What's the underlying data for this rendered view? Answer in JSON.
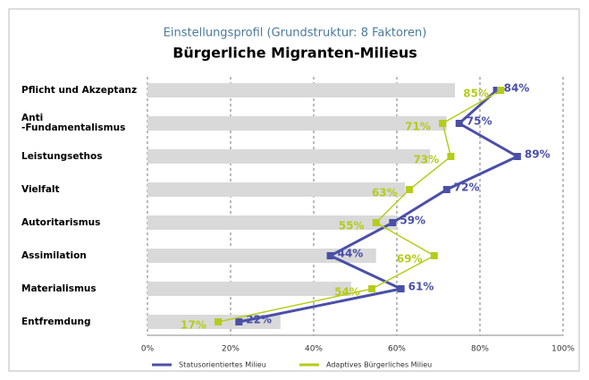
{
  "chart_data": {
    "type": "bar_line",
    "subtitle": "Einstellungsprofil (Grundstruktur: 8 Faktoren)",
    "title": "Bürgerliche Migranten-Milieus",
    "categories": [
      "Pflicht und Akzeptanz",
      "Anti\n-Fundamentalismus",
      "Leistungsethos",
      "Vielfalt",
      "Autoritarismus",
      "Assimilation",
      "Materialismus",
      "Entfremdung"
    ],
    "bars": {
      "color": "#d9d9d9",
      "values": [
        74,
        72,
        68,
        62,
        60,
        55,
        49,
        32
      ]
    },
    "series": [
      {
        "name": "Statusorientiertes Milieu",
        "color": "#4a4fa8",
        "values": [
          84,
          75,
          89,
          72,
          59,
          44,
          61,
          22
        ],
        "value_labels": [
          "84%",
          "75%",
          "89%",
          "72%",
          "59%",
          "44%",
          "61%",
          "22%"
        ]
      },
      {
        "name": "Adaptives Bürgerliches Milieu",
        "color": "#b5cc1a",
        "values": [
          85,
          71,
          73,
          63,
          55,
          69,
          54,
          17
        ],
        "value_labels": [
          "85%",
          "71%",
          "73%",
          "63%",
          "55%",
          "69%",
          "54%",
          "17%"
        ]
      }
    ],
    "xlim": [
      0,
      100
    ],
    "xticks": [
      {
        "value": 0,
        "label": "0%"
      },
      {
        "value": 20,
        "label": "20%"
      },
      {
        "value": 40,
        "label": "40%"
      },
      {
        "value": 60,
        "label": "60%"
      },
      {
        "value": 80,
        "label": "80%"
      },
      {
        "value": 100,
        "label": "100%"
      }
    ],
    "grid": true
  }
}
